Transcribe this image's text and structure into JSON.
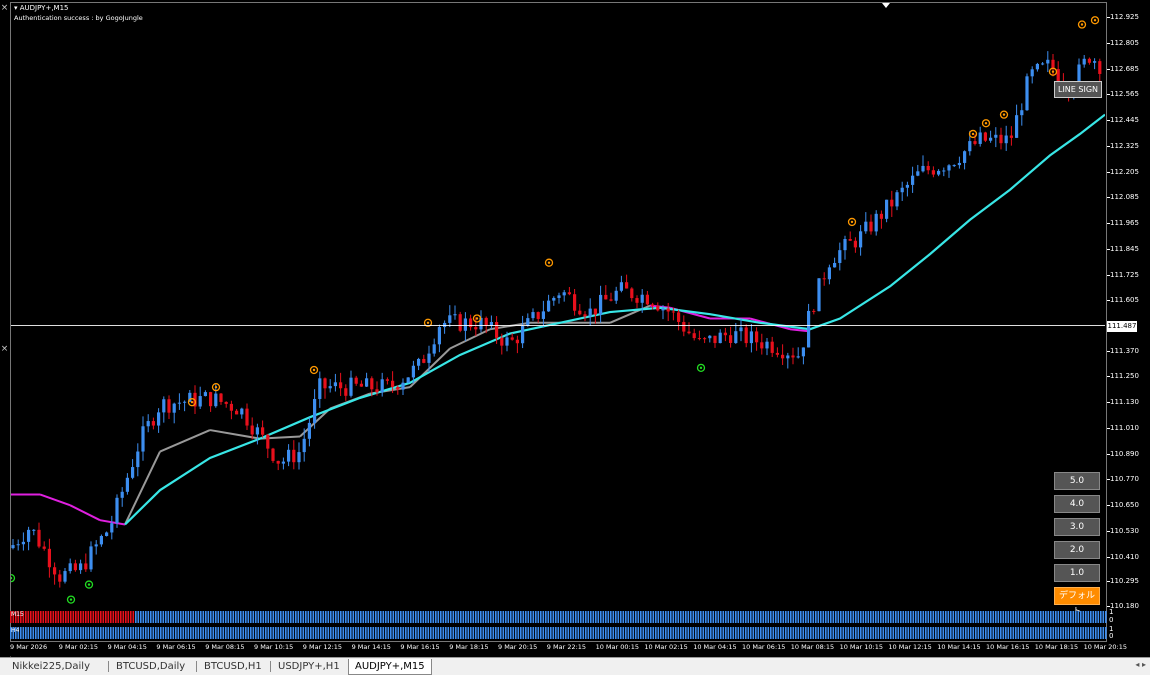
{
  "chart": {
    "symbol": "AUDJPY+,M15",
    "auth_text": "Authentication success : by GogoJungle",
    "current_price": "111.487",
    "current_price_value": 111.487,
    "price_labels": [
      "112.925",
      "112.805",
      "112.685",
      "112.565",
      "112.445",
      "112.325",
      "112.205",
      "112.085",
      "111.965",
      "111.845",
      "111.725",
      "111.605",
      "111.370",
      "111.250",
      "111.130",
      "111.010",
      "110.890",
      "110.770",
      "110.650",
      "110.530",
      "110.410",
      "110.295",
      "110.180"
    ],
    "time_labels": [
      "9 Mar 2026",
      "9 Mar 02:15",
      "9 Mar 04:15",
      "9 Mar 06:15",
      "9 Mar 08:15",
      "9 Mar 10:15",
      "9 Mar 12:15",
      "9 Mar 14:15",
      "9 Mar 16:15",
      "9 Mar 18:15",
      "9 Mar 20:15",
      "9 Mar 22:15",
      "10 Mar 00:15",
      "10 Mar 02:15",
      "10 Mar 04:15",
      "10 Mar 06:15",
      "10 Mar 08:15",
      "10 Mar 10:15",
      "10 Mar 12:15",
      "10 Mar 14:15",
      "10 Mar 16:15",
      "10 Mar 18:15",
      "10 Mar 20:15"
    ],
    "bull_color": "#3d8ef0",
    "bear_color": "#e8101c",
    "ma_color": "#38e6e6",
    "trend_up_color": "#999999",
    "trend_down_color": "#e020e0",
    "signal_up_color": "#ff9900",
    "signal_down_color": "#22dd22"
  },
  "buttons": {
    "line_sign": "LINE SIGN",
    "b50": "5.0",
    "b40": "4.0",
    "b30": "3.0",
    "b20": "2.0",
    "b10": "1.0",
    "default": "デフォルト"
  },
  "panels": {
    "m15_label": "M15",
    "h4_label": "H4",
    "scale_top": "1",
    "scale_bottom": "0"
  },
  "tabs": [
    "Nikkei225,Daily",
    "BTCUSD,Daily",
    "BTCUSD,H1",
    "USDJPY+,H1",
    "AUDJPY+,M15"
  ],
  "active_tab": "AUDJPY+,M15"
}
